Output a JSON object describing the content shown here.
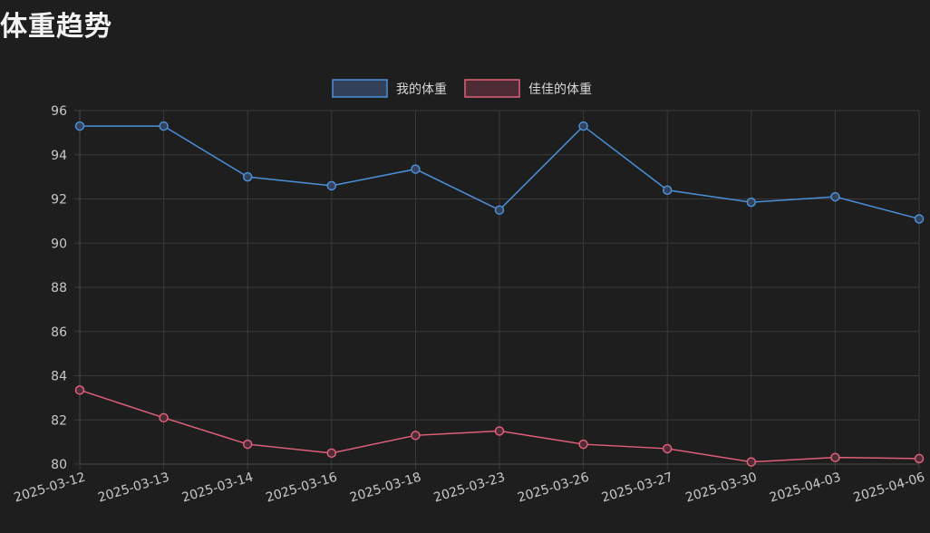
{
  "page_title": "体重趋势",
  "chart_data": {
    "type": "line",
    "categories": [
      "2025-03-12",
      "2025-03-13",
      "2025-03-14",
      "2025-03-16",
      "2025-03-18",
      "2025-03-23",
      "2025-03-26",
      "2025-03-27",
      "2025-03-30",
      "2025-04-03",
      "2025-04-06"
    ],
    "series": [
      {
        "name": "我的体重",
        "color": "#4a90d9",
        "fill": "#33415a",
        "values": [
          95.3,
          95.3,
          93.0,
          92.6,
          93.35,
          91.5,
          95.3,
          92.4,
          91.85,
          92.1,
          91.1
        ]
      },
      {
        "name": "佳佳的体重",
        "color": "#e0607a",
        "fill": "#4d2c35",
        "values": [
          83.35,
          82.1,
          80.9,
          80.5,
          81.3,
          81.5,
          80.9,
          80.7,
          80.1,
          80.3,
          80.25
        ]
      }
    ],
    "ylim": [
      80,
      96
    ],
    "yticks": [
      "80",
      "82",
      "84",
      "86",
      "88",
      "90",
      "92",
      "94",
      "96"
    ],
    "grid": true,
    "legend": "top-center"
  }
}
